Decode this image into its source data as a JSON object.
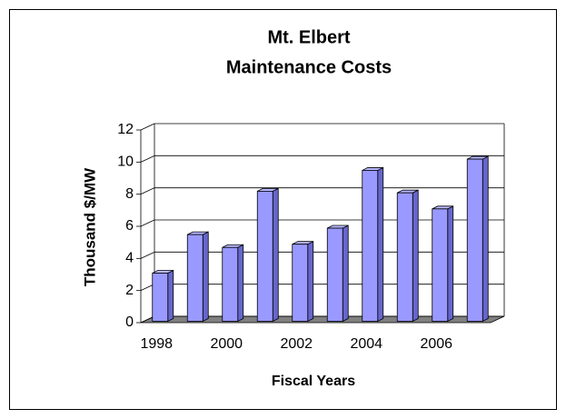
{
  "chart_data": {
    "type": "bar3d",
    "title": [
      "Mt. Elbert",
      "Maintenance Costs"
    ],
    "x_label": "Fiscal Years",
    "y_label": "Thousand $/MW",
    "categories": [
      "1998",
      null,
      "2000",
      null,
      "2002",
      null,
      "2004",
      null,
      "2006",
      null
    ],
    "values": [
      3.0,
      5.4,
      4.6,
      8.1,
      4.8,
      5.8,
      9.4,
      8.0,
      7.0,
      10.1
    ],
    "color": "#9999ff",
    "ylim": [
      0,
      12
    ],
    "yticks": [
      0,
      2,
      4,
      6,
      8,
      10,
      12
    ],
    "grid": true
  }
}
